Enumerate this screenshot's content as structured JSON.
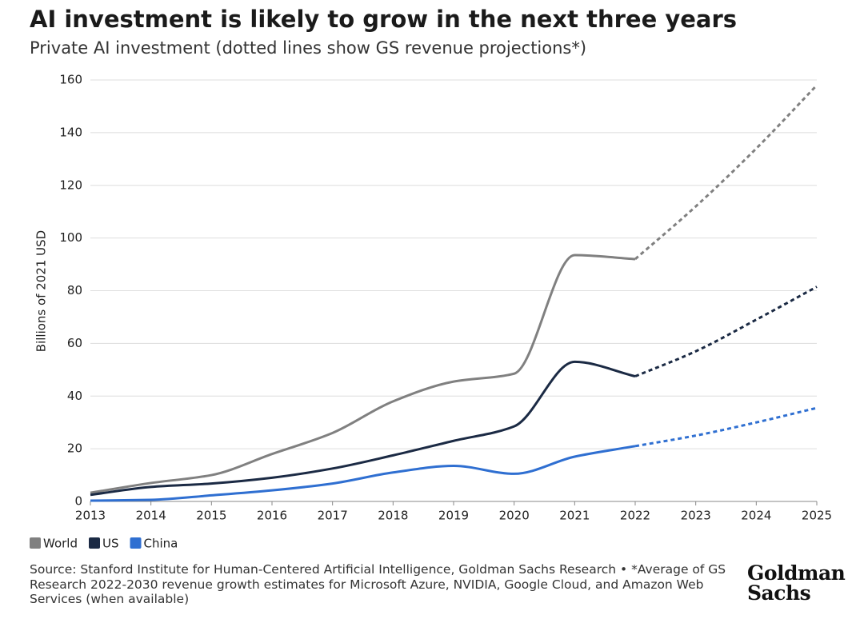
{
  "chart_data": {
    "type": "line",
    "title": "AI investment is likely to grow in the next three years",
    "subtitle": "Private AI investment (dotted lines show GS revenue projections*)",
    "y_label": "Billions of 2021 USD",
    "x": [
      2013,
      2014,
      2015,
      2016,
      2017,
      2018,
      2019,
      2020,
      2021,
      2022,
      2023,
      2024,
      2025
    ],
    "xlim": [
      2013,
      2025
    ],
    "xticks": [
      2013,
      2014,
      2015,
      2016,
      2017,
      2018,
      2019,
      2020,
      2021,
      2022,
      2023,
      2024,
      2025
    ],
    "ylim": [
      0,
      160
    ],
    "yticks": [
      0,
      20,
      40,
      60,
      80,
      100,
      120,
      140,
      160
    ],
    "grid": true,
    "projected_from": 2022,
    "legend": "bottom-left",
    "series": [
      {
        "name": "World",
        "color": "#808080",
        "values": [
          3.3,
          7,
          10,
          18,
          26,
          38,
          45.5,
          48.5,
          93.5,
          92,
          112,
          134,
          158
        ]
      },
      {
        "name": "US",
        "color": "#1b2a44",
        "values": [
          2.5,
          5.5,
          6.8,
          9,
          12.5,
          17.5,
          23,
          28.5,
          53,
          47.5,
          57,
          69,
          81.5
        ]
      },
      {
        "name": "China",
        "color": "#2f6fd1",
        "values": [
          0.3,
          0.6,
          2.3,
          4.2,
          6.8,
          11,
          13.5,
          10.5,
          17,
          21,
          25,
          30,
          35.5
        ]
      }
    ],
    "source": "Source: Stanford Institute for Human-Centered Artificial Intelligence, Goldman Sachs Research • *Average of GS Research 2022-2030 revenue growth estimates for Microsoft Azure, NVIDIA, Google Cloud, and Amazon Web Services (when available)",
    "logo": [
      "Goldman",
      "Sachs"
    ]
  }
}
